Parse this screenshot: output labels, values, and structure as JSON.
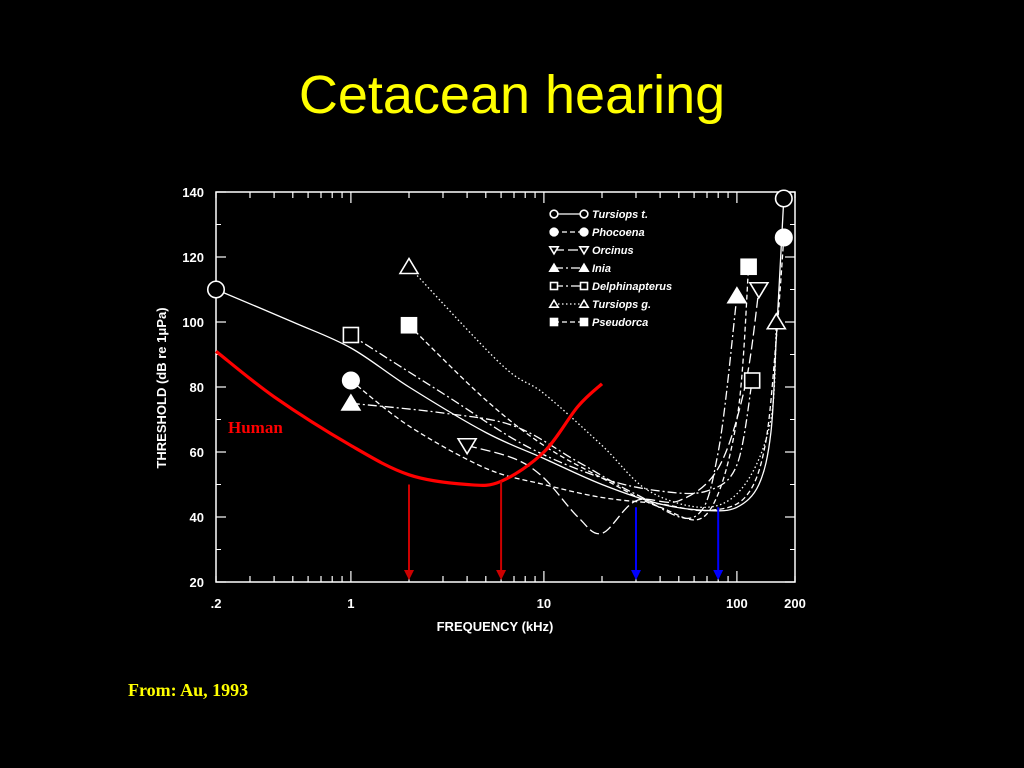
{
  "slide": {
    "title": "Cetacean hearing",
    "source": "From: Au, 1993"
  },
  "colors": {
    "background": "#000000",
    "title": "#ffff00",
    "foreground": "#ffffff",
    "human_curve": "#ff0000",
    "human_arrow": "#cc0000",
    "cetacean_arrow": "#0000ff"
  },
  "chart_data": {
    "type": "line",
    "xlabel": "FREQUENCY (kHz)",
    "ylabel": "THRESHOLD (dB re 1μPa)",
    "x_scale": "log",
    "xlim": [
      0.2,
      200
    ],
    "ylim": [
      20,
      140
    ],
    "x_ticks": [
      {
        "value": 0.2,
        "label": ".2"
      },
      {
        "value": 1,
        "label": "1"
      },
      {
        "value": 10,
        "label": "10"
      },
      {
        "value": 100,
        "label": "100"
      },
      {
        "value": 200,
        "label": "200"
      }
    ],
    "y_ticks": [
      20,
      40,
      60,
      80,
      100,
      120,
      140
    ],
    "legend_position": "top-right",
    "series": [
      {
        "name": "Tursiops t.",
        "marker": "circle-open",
        "dash": "solid",
        "points": [
          [
            0.2,
            110
          ],
          [
            0.5,
            100
          ],
          [
            1,
            92
          ],
          [
            2,
            80
          ],
          [
            5,
            66
          ],
          [
            10,
            58
          ],
          [
            20,
            50
          ],
          [
            40,
            44
          ],
          [
            70,
            42
          ],
          [
            100,
            43
          ],
          [
            130,
            50
          ],
          [
            150,
            66
          ],
          [
            160,
            95
          ],
          [
            175,
            138
          ]
        ]
      },
      {
        "name": "Phocoena",
        "marker": "circle-filled",
        "dash": "dashed",
        "points": [
          [
            1,
            82
          ],
          [
            2,
            68
          ],
          [
            5,
            55
          ],
          [
            10,
            50
          ],
          [
            20,
            46
          ],
          [
            40,
            44
          ],
          [
            70,
            42
          ],
          [
            110,
            46
          ],
          [
            140,
            62
          ],
          [
            160,
            95
          ],
          [
            175,
            126
          ]
        ]
      },
      {
        "name": "Orcinus",
        "marker": "triangle-down-open",
        "dash": "long-dash",
        "points": [
          [
            4,
            62
          ],
          [
            7,
            58
          ],
          [
            10,
            52
          ],
          [
            15,
            40
          ],
          [
            20,
            35
          ],
          [
            30,
            45
          ],
          [
            50,
            45
          ],
          [
            80,
            55
          ],
          [
            110,
            80
          ],
          [
            130,
            110
          ]
        ]
      },
      {
        "name": "Inia",
        "marker": "triangle-filled",
        "dash": "dash-dot",
        "points": [
          [
            1,
            75
          ],
          [
            3,
            72
          ],
          [
            7,
            68
          ],
          [
            15,
            57
          ],
          [
            30,
            47
          ],
          [
            60,
            40
          ],
          [
            80,
            60
          ],
          [
            100,
            108
          ]
        ]
      },
      {
        "name": "Delphinapterus",
        "marker": "square-open",
        "dash": "dash-dot",
        "points": [
          [
            1,
            96
          ],
          [
            3,
            78
          ],
          [
            8,
            62
          ],
          [
            20,
            52
          ],
          [
            40,
            48
          ],
          [
            70,
            48
          ],
          [
            100,
            56
          ],
          [
            120,
            82
          ]
        ]
      },
      {
        "name": "Tursiops g.",
        "marker": "triangle-open",
        "dash": "dotted",
        "points": [
          [
            2,
            117
          ],
          [
            6,
            87
          ],
          [
            10,
            78
          ],
          [
            20,
            62
          ],
          [
            35,
            48
          ],
          [
            70,
            43
          ],
          [
            110,
            50
          ],
          [
            150,
            70
          ],
          [
            160,
            100
          ]
        ]
      },
      {
        "name": "Pseudorca",
        "marker": "square-filled",
        "dash": "dashed",
        "points": [
          [
            2,
            99
          ],
          [
            5,
            76
          ],
          [
            10,
            62
          ],
          [
            20,
            52
          ],
          [
            40,
            43
          ],
          [
            70,
            41
          ],
          [
            100,
            70
          ],
          [
            115,
            117
          ]
        ]
      }
    ],
    "annotations": [
      {
        "label": "Human",
        "color": "#ff0000",
        "points": [
          [
            0.2,
            91
          ],
          [
            0.4,
            77
          ],
          [
            1,
            62
          ],
          [
            2,
            53
          ],
          [
            4,
            50
          ],
          [
            6,
            51
          ],
          [
            10,
            60
          ],
          [
            15,
            74
          ],
          [
            20,
            81
          ]
        ]
      }
    ],
    "arrows": [
      {
        "frequency": 2,
        "from": 50,
        "color": "#cc0000"
      },
      {
        "frequency": 6,
        "from": 51,
        "color": "#cc0000"
      },
      {
        "frequency": 30,
        "from": 43,
        "color": "#0000ff"
      },
      {
        "frequency": 80,
        "from": 43,
        "color": "#0000ff"
      }
    ]
  }
}
